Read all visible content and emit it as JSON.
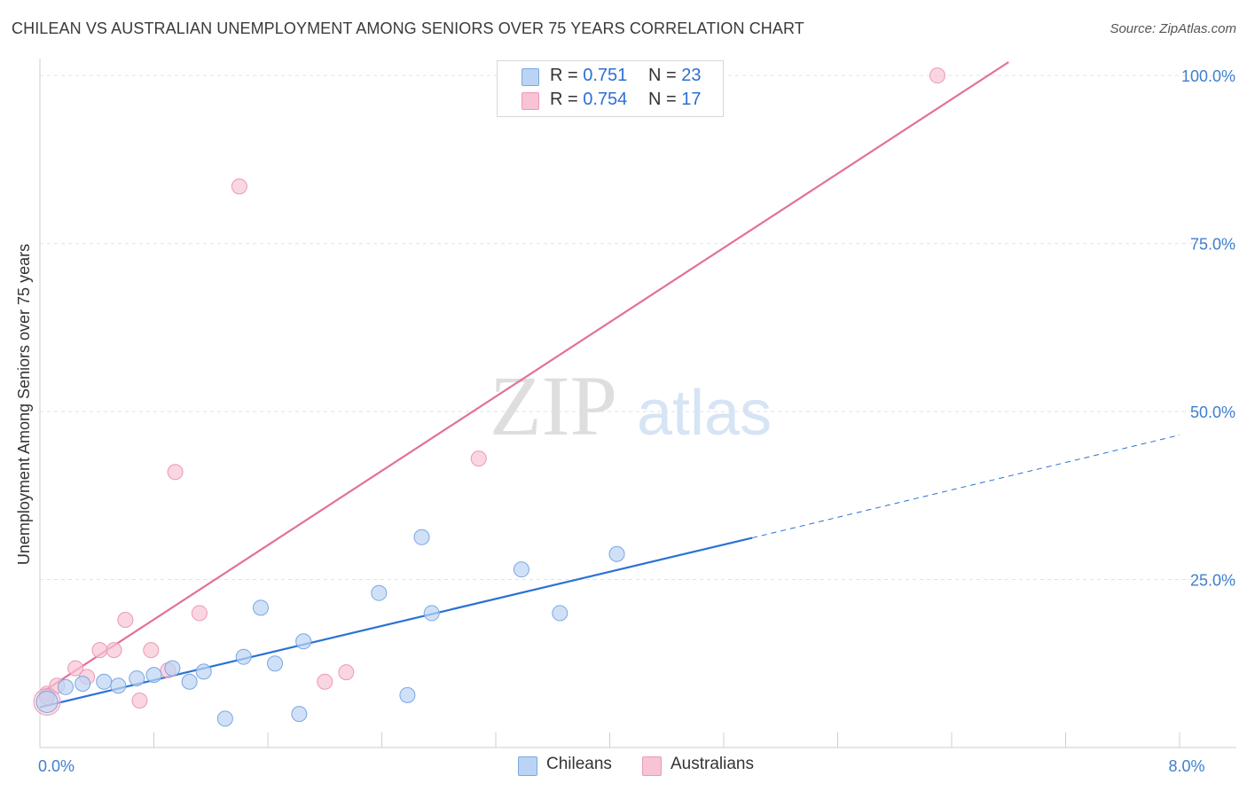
{
  "title": "CHILEAN VS AUSTRALIAN UNEMPLOYMENT AMONG SENIORS OVER 75 YEARS CORRELATION CHART",
  "source": "Source: ZipAtlas.com",
  "watermark": {
    "zip": "ZIP",
    "atlas": "atlas"
  },
  "legend": {
    "r_label": "R =",
    "n_label": "N =",
    "chileans": {
      "r": "0.751",
      "n": "23",
      "label": "Chileans"
    },
    "australians": {
      "r": "0.754",
      "n": "17",
      "label": "Australians"
    }
  },
  "colors": {
    "chileans_fill": "#bcd4f4",
    "chileans_stroke": "#7aa6e2",
    "chileans_line": "#2a72d4",
    "australians_fill": "#f8c4d4",
    "australians_stroke": "#ec99b4",
    "australians_line": "#e3709a",
    "axis_label": "#3f7fcf"
  },
  "chart_data": {
    "type": "scatter",
    "title": "CHILEAN VS AUSTRALIAN UNEMPLOYMENT AMONG SENIORS OVER 75 YEARS CORRELATION CHART",
    "xlabel": "",
    "ylabel": "Unemployment Among Seniors over 75 years",
    "xlim": [
      0,
      8
    ],
    "ylim": [
      0,
      102
    ],
    "x_tick_labels": [
      {
        "value": 0,
        "label": "0.0%"
      },
      {
        "value": 8,
        "label": "8.0%"
      }
    ],
    "y_tick_labels": [
      {
        "value": 25,
        "label": "25.0%"
      },
      {
        "value": 50,
        "label": "50.0%"
      },
      {
        "value": 75,
        "label": "75.0%"
      },
      {
        "value": 100,
        "label": "100.0%"
      }
    ],
    "series": [
      {
        "name": "Chileans",
        "points": [
          [
            0.05,
            7.5
          ],
          [
            0.18,
            9.0
          ],
          [
            0.3,
            9.5
          ],
          [
            0.45,
            9.8
          ],
          [
            0.55,
            9.2
          ],
          [
            0.68,
            10.3
          ],
          [
            0.8,
            10.8
          ],
          [
            0.93,
            11.8
          ],
          [
            1.05,
            9.8
          ],
          [
            1.15,
            11.3
          ],
          [
            1.3,
            4.3
          ],
          [
            1.43,
            13.5
          ],
          [
            1.55,
            20.8
          ],
          [
            1.65,
            12.5
          ],
          [
            1.85,
            15.8
          ],
          [
            1.82,
            5.0
          ],
          [
            2.38,
            23.0
          ],
          [
            2.58,
            7.8
          ],
          [
            2.68,
            31.3
          ],
          [
            2.75,
            20.0
          ],
          [
            3.38,
            26.5
          ],
          [
            3.65,
            20.0
          ],
          [
            4.05,
            28.8
          ]
        ],
        "fit_solid": [
          [
            0.0,
            6.0
          ],
          [
            5.0,
            31.2
          ]
        ],
        "fit_dashed": [
          [
            5.0,
            31.2
          ],
          [
            8.0,
            46.5
          ]
        ]
      },
      {
        "name": "Australians",
        "points": [
          [
            0.05,
            8.0
          ],
          [
            0.12,
            9.2
          ],
          [
            0.25,
            11.8
          ],
          [
            0.33,
            10.5
          ],
          [
            0.42,
            14.5
          ],
          [
            0.52,
            14.5
          ],
          [
            0.6,
            19.0
          ],
          [
            0.7,
            7.0
          ],
          [
            0.78,
            14.5
          ],
          [
            0.9,
            11.5
          ],
          [
            0.95,
            41.0
          ],
          [
            1.12,
            20.0
          ],
          [
            1.4,
            83.5
          ],
          [
            2.0,
            9.8
          ],
          [
            2.15,
            11.2
          ],
          [
            3.08,
            43.0
          ],
          [
            6.3,
            100.0
          ]
        ],
        "fit_solid": [
          [
            0.0,
            8.0
          ],
          [
            6.8,
            102.0
          ]
        ]
      }
    ]
  }
}
